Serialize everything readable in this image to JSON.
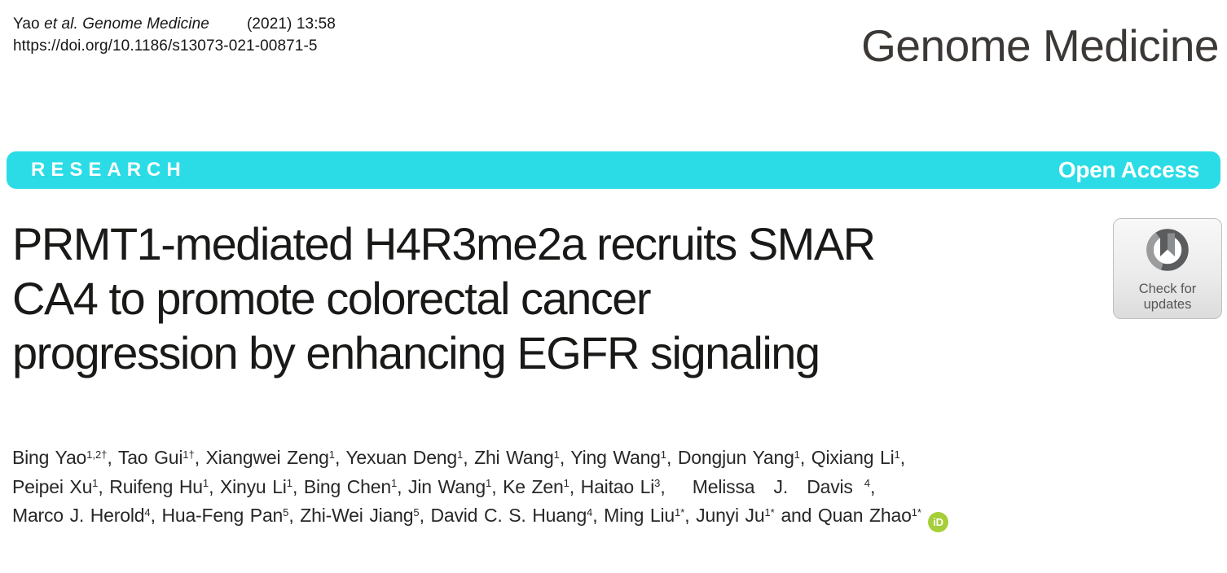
{
  "header": {
    "citation_line1": [
      {
        "t": "Yao "
      },
      {
        "t": "et al. Genome Medicine",
        "i": true
      },
      {
        "t": "(2021) 13:58",
        "c": "gap"
      }
    ],
    "citation_doi": "https://doi.org/10.1186/s13073-021-00871-5",
    "journal_name": "Genome Medicine"
  },
  "banner": {
    "section_label": "RESEARCH",
    "access_label": "Open Access",
    "background_color": "#2BDCE6",
    "text_color": "#FFFFFF"
  },
  "article": {
    "title_lines": [
      "PRMT1-mediated H4R3me2a recruits SMAR",
      "CA4 to promote colorectal cancer",
      "progression by enhancing EGFR signaling"
    ],
    "authors_lines": [
      [
        {
          "t": "Bing Yao"
        },
        {
          "s": "1,2†"
        },
        {
          "t": ", Tao Gui"
        },
        {
          "s": "1†"
        },
        {
          "t": ", Xiangwei Zeng"
        },
        {
          "s": "1"
        },
        {
          "t": ", Yexuan Deng"
        },
        {
          "s": "1"
        },
        {
          "t": ", Zhi Wang"
        },
        {
          "s": "1"
        },
        {
          "t": ", Ying Wang"
        },
        {
          "s": "1"
        },
        {
          "t": ", Dongjun Yang"
        },
        {
          "s": "1"
        },
        {
          "t": ", Qixiang Li"
        },
        {
          "s": "1"
        },
        {
          "t": ","
        }
      ],
      [
        {
          "t": "Peipei Xu"
        },
        {
          "s": "1"
        },
        {
          "t": ", Ruifeng Hu"
        },
        {
          "s": "1"
        },
        {
          "t": ", Xinyu Li"
        },
        {
          "s": "1"
        },
        {
          "t": ", Bing Chen"
        },
        {
          "s": "1"
        },
        {
          "t": ", Jin Wang"
        },
        {
          "s": "1"
        },
        {
          "t": ", Ke Zen"
        },
        {
          "s": "1"
        },
        {
          "t": ", Haitao Li"
        },
        {
          "s": "3"
        },
        {
          "t": ","
        },
        {
          "t": " Melissa J. Davis",
          "c": "wide"
        },
        {
          "s": "4",
          "c": "gap2"
        },
        {
          "t": ","
        }
      ],
      [
        {
          "t": "Marco J. Herold"
        },
        {
          "s": "4"
        },
        {
          "t": ", Hua-Feng Pan"
        },
        {
          "s": "5"
        },
        {
          "t": ", Zhi-Wei Jiang"
        },
        {
          "s": "5"
        },
        {
          "t": ", David C. S. Huang"
        },
        {
          "s": "4"
        },
        {
          "t": ", Ming Liu"
        },
        {
          "s": "1*"
        },
        {
          "t": ", Junyi Ju"
        },
        {
          "s": "1*"
        },
        {
          "t": " and Quan Zhao"
        },
        {
          "s": "1*"
        }
      ]
    ]
  },
  "check_badge": {
    "line1": "Check for",
    "line2": "updates"
  },
  "icons": {
    "orcid_label": "iD",
    "orcid_color": "#A6CE39"
  }
}
